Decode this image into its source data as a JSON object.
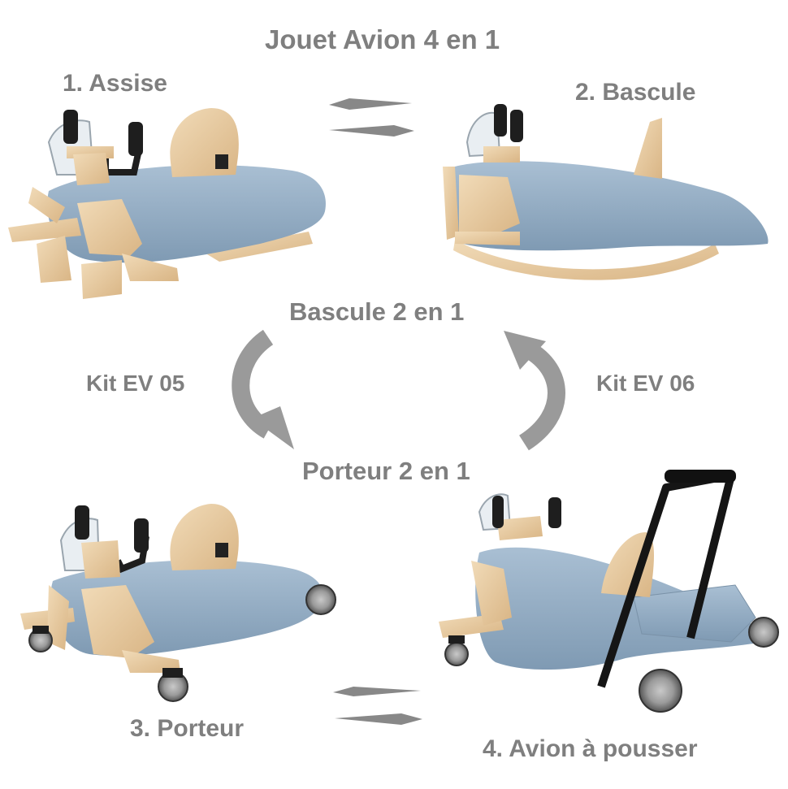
{
  "title": "Jouet Avion 4 en 1",
  "steps": [
    {
      "label": "1. Assise"
    },
    {
      "label": "2. Bascule"
    },
    {
      "label": "3. Porteur"
    },
    {
      "label": "4. Avion à pousser"
    }
  ],
  "middle": {
    "top": "Bascule 2 en 1",
    "bottom": "Porteur 2 en 1",
    "kit_left": "Kit EV 05",
    "kit_right": "Kit EV 06"
  },
  "colors": {
    "text": "#7f7f7f",
    "body_blue": "#8fa9c1",
    "wood": "#e7c9a0",
    "arrow": "#9a9a9a",
    "black": "#1a1a1a"
  }
}
